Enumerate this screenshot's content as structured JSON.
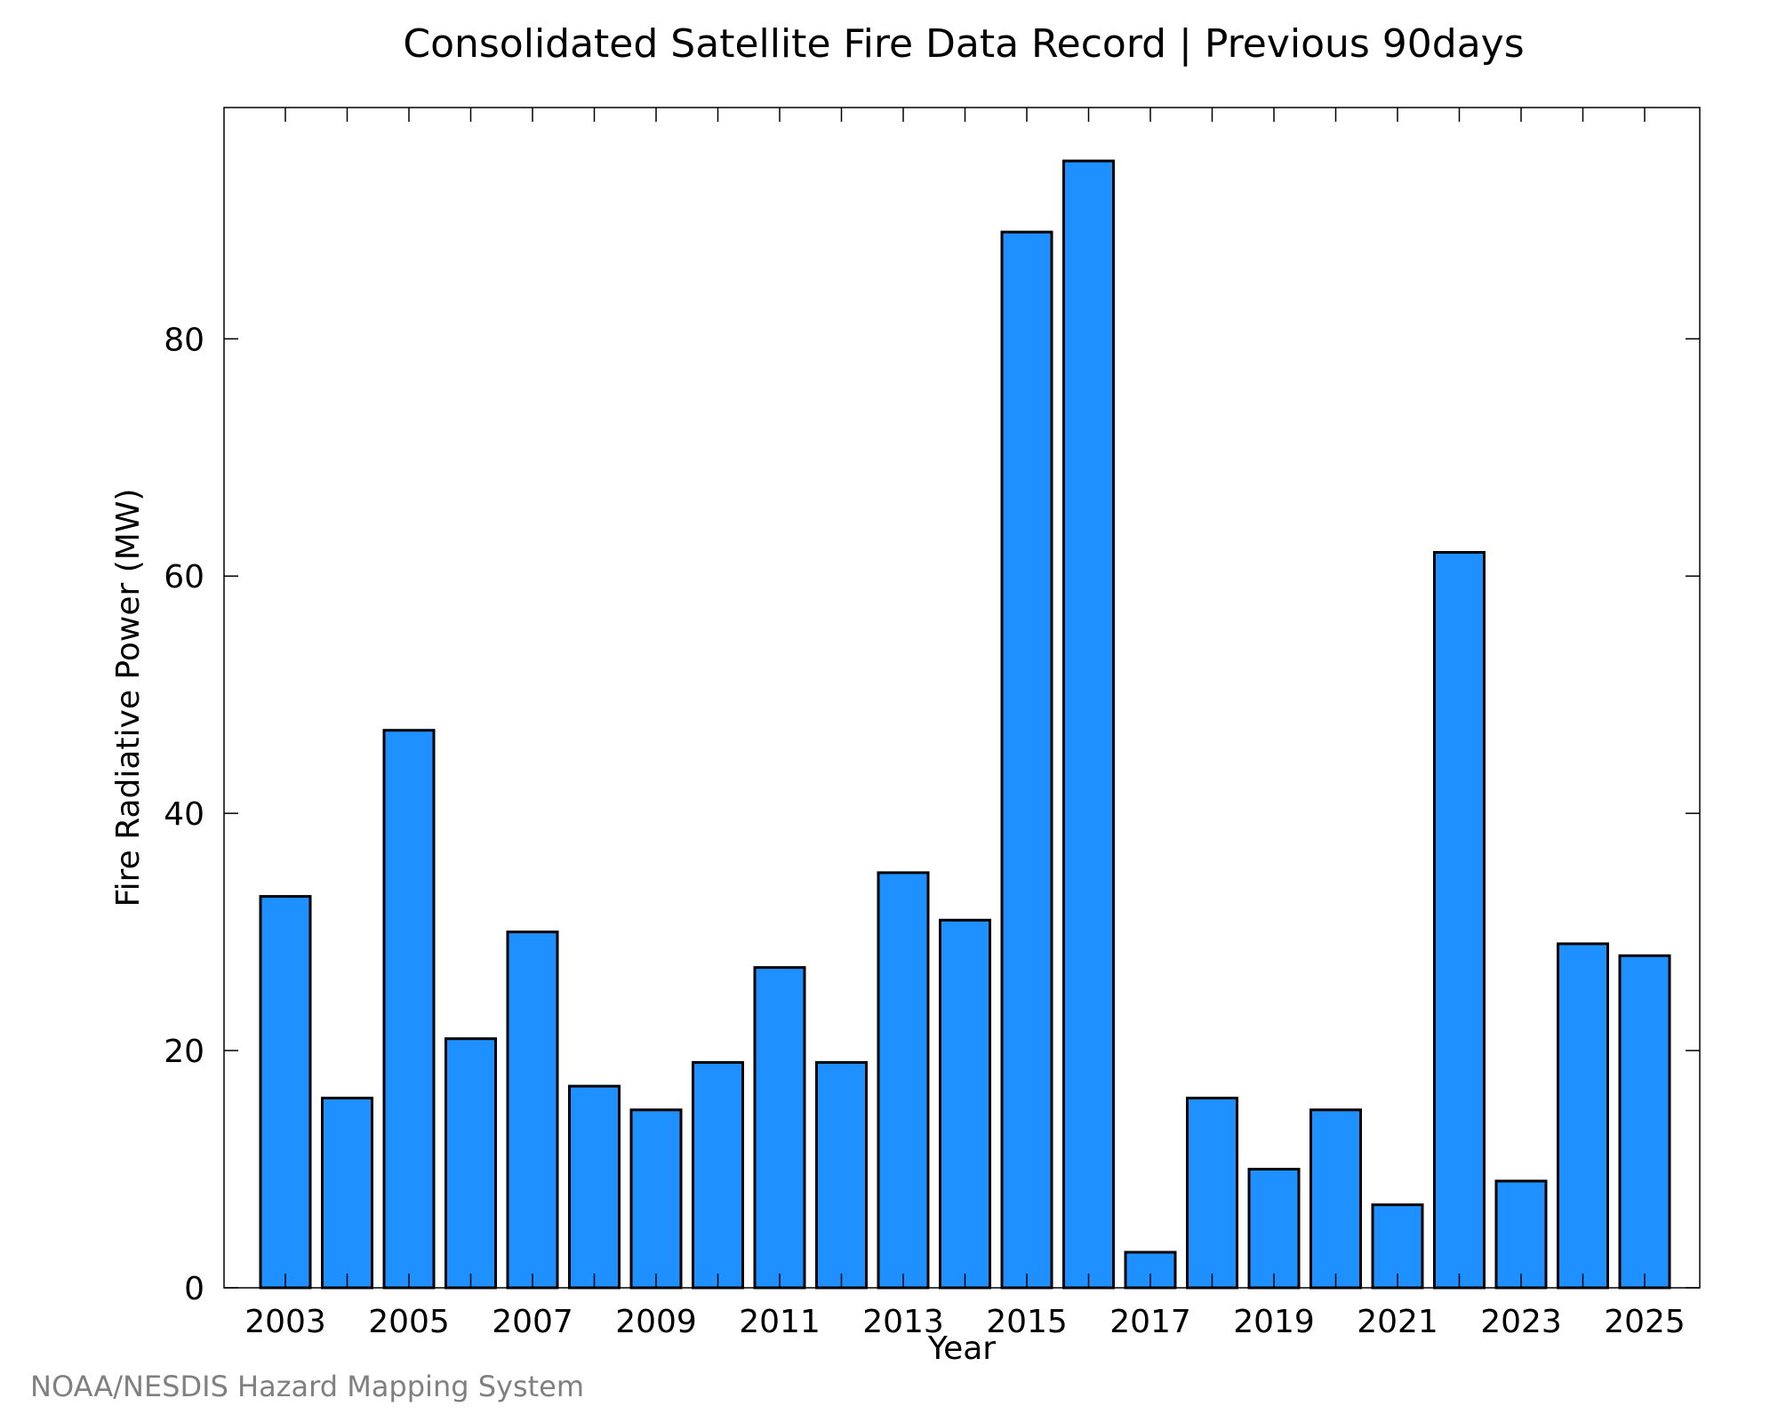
{
  "chart_data": {
    "type": "bar",
    "title": "Consolidated Satellite Fire Data Record | Previous 90days",
    "xlabel": "Year",
    "ylabel": "Fire Radiative Power (MW)",
    "categories": [
      "2003",
      "2004",
      "2005",
      "2006",
      "2007",
      "2008",
      "2009",
      "2010",
      "2011",
      "2012",
      "2013",
      "2014",
      "2015",
      "2016",
      "2017",
      "2018",
      "2019",
      "2020",
      "2021",
      "2022",
      "2023",
      "2024",
      "2025"
    ],
    "values": [
      33,
      16,
      47,
      21,
      30,
      17,
      15,
      19,
      27,
      19,
      35,
      31,
      89,
      95,
      3,
      16,
      10,
      15,
      7,
      62,
      9,
      29,
      28
    ],
    "x_tick_labels": [
      "2003",
      "2005",
      "2007",
      "2009",
      "2011",
      "2013",
      "2015",
      "2017",
      "2019",
      "2021",
      "2023",
      "2025"
    ],
    "y_ticks": [
      0,
      20,
      40,
      60,
      80
    ],
    "ylim": [
      0,
      99.5
    ],
    "grid": false,
    "bar_color": "#1e90ff",
    "bar_edge_color": "#000000"
  },
  "footer": {
    "credit": "NOAA/NESDIS Hazard Mapping System"
  }
}
